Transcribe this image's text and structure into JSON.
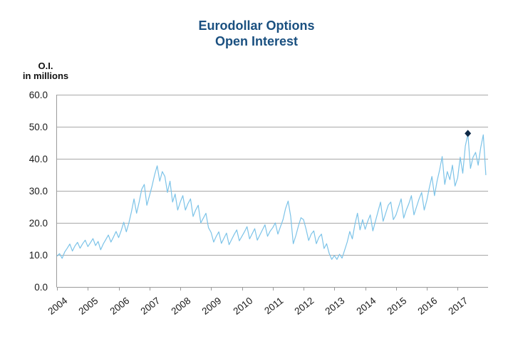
{
  "title": {
    "line1": "Eurodollar Options",
    "line2": "Open Interest",
    "color": "#1a5080"
  },
  "y_axis_title": {
    "line1": "O.I.",
    "line2": "in millions"
  },
  "chart_data": {
    "type": "line",
    "title": "Eurodollar Options Open Interest",
    "ylabel": "O.I. in millions",
    "xlabel": "",
    "ylim": [
      0,
      60
    ],
    "grid": true,
    "legend_position": "none",
    "frequency": "monthly",
    "x_start": "2004-01",
    "x_end": "2017-12",
    "x_tick_years": [
      "2004",
      "2005",
      "2006",
      "2007",
      "2008",
      "2009",
      "2010",
      "2011",
      "2012",
      "2013",
      "2014",
      "2015",
      "2016",
      "2017"
    ],
    "y_ticks": [
      {
        "value": 0,
        "label": "0.0"
      },
      {
        "value": 10,
        "label": "10.0"
      },
      {
        "value": 20,
        "label": "20.0"
      },
      {
        "value": 30,
        "label": "30.0"
      },
      {
        "value": 40,
        "label": "40.0"
      },
      {
        "value": 50,
        "label": "50.0"
      },
      {
        "value": 60,
        "label": "60.0"
      }
    ],
    "series": [
      {
        "name": "Eurodollar options open interest (millions of contracts)",
        "color": "#7cc3e8",
        "values": [
          9.6,
          10.4,
          8.9,
          10.9,
          12.1,
          13.4,
          11.2,
          12.8,
          13.9,
          12.1,
          13.5,
          14.6,
          12.6,
          13.8,
          15.1,
          12.9,
          14.2,
          11.6,
          13.4,
          14.8,
          16.2,
          14.0,
          15.6,
          17.3,
          15.4,
          17.6,
          20.2,
          17.2,
          20.0,
          23.5,
          27.5,
          23.0,
          26.5,
          30.5,
          32.0,
          25.5,
          28.5,
          31.5,
          35.0,
          37.8,
          33.0,
          36.0,
          34.5,
          29.5,
          33.0,
          26.5,
          29.0,
          24.0,
          26.5,
          28.5,
          24.0,
          26.0,
          27.5,
          22.0,
          24.0,
          25.5,
          20.0,
          21.5,
          23.0,
          18.5,
          17.0,
          14.0,
          15.8,
          17.2,
          13.6,
          15.2,
          16.8,
          13.2,
          14.8,
          16.4,
          17.8,
          14.4,
          15.8,
          17.2,
          18.8,
          15.0,
          16.6,
          18.2,
          14.6,
          16.2,
          17.8,
          19.4,
          15.8,
          17.4,
          18.5,
          20.0,
          16.5,
          18.8,
          21.0,
          24.5,
          26.8,
          22.0,
          13.5,
          16.0,
          19.0,
          21.6,
          21.0,
          18.0,
          14.5,
          16.5,
          17.5,
          13.5,
          15.5,
          16.5,
          12.0,
          13.5,
          10.5,
          8.6,
          9.8,
          8.6,
          10.2,
          9.0,
          11.5,
          14.0,
          17.3,
          15.0,
          19.5,
          23.0,
          17.8,
          21.0,
          18.0,
          20.5,
          22.5,
          17.5,
          20.5,
          23.5,
          26.5,
          20.5,
          23.0,
          25.5,
          26.5,
          21.0,
          22.5,
          25.0,
          27.5,
          21.5,
          24.0,
          26.0,
          28.5,
          22.5,
          25.0,
          27.5,
          29.5,
          24.0,
          27.0,
          31.0,
          34.5,
          28.5,
          33.0,
          36.5,
          40.7,
          32.0,
          36.0,
          33.5,
          38.0,
          31.5,
          34.0,
          40.5,
          35.5,
          44.0,
          47.7,
          37.0,
          40.5,
          42.0,
          38.0,
          43.5,
          47.5,
          34.9
        ]
      }
    ],
    "marker": {
      "shape": "diamond",
      "x": "2017-05",
      "month_index": 160,
      "value": 47.7,
      "color": "#0d2947"
    },
    "style": {
      "grid_color": "#a8a8a8",
      "axis_color": "#9b9b9b",
      "text_color": "#1a1a1a",
      "background": "#ffffff"
    }
  }
}
